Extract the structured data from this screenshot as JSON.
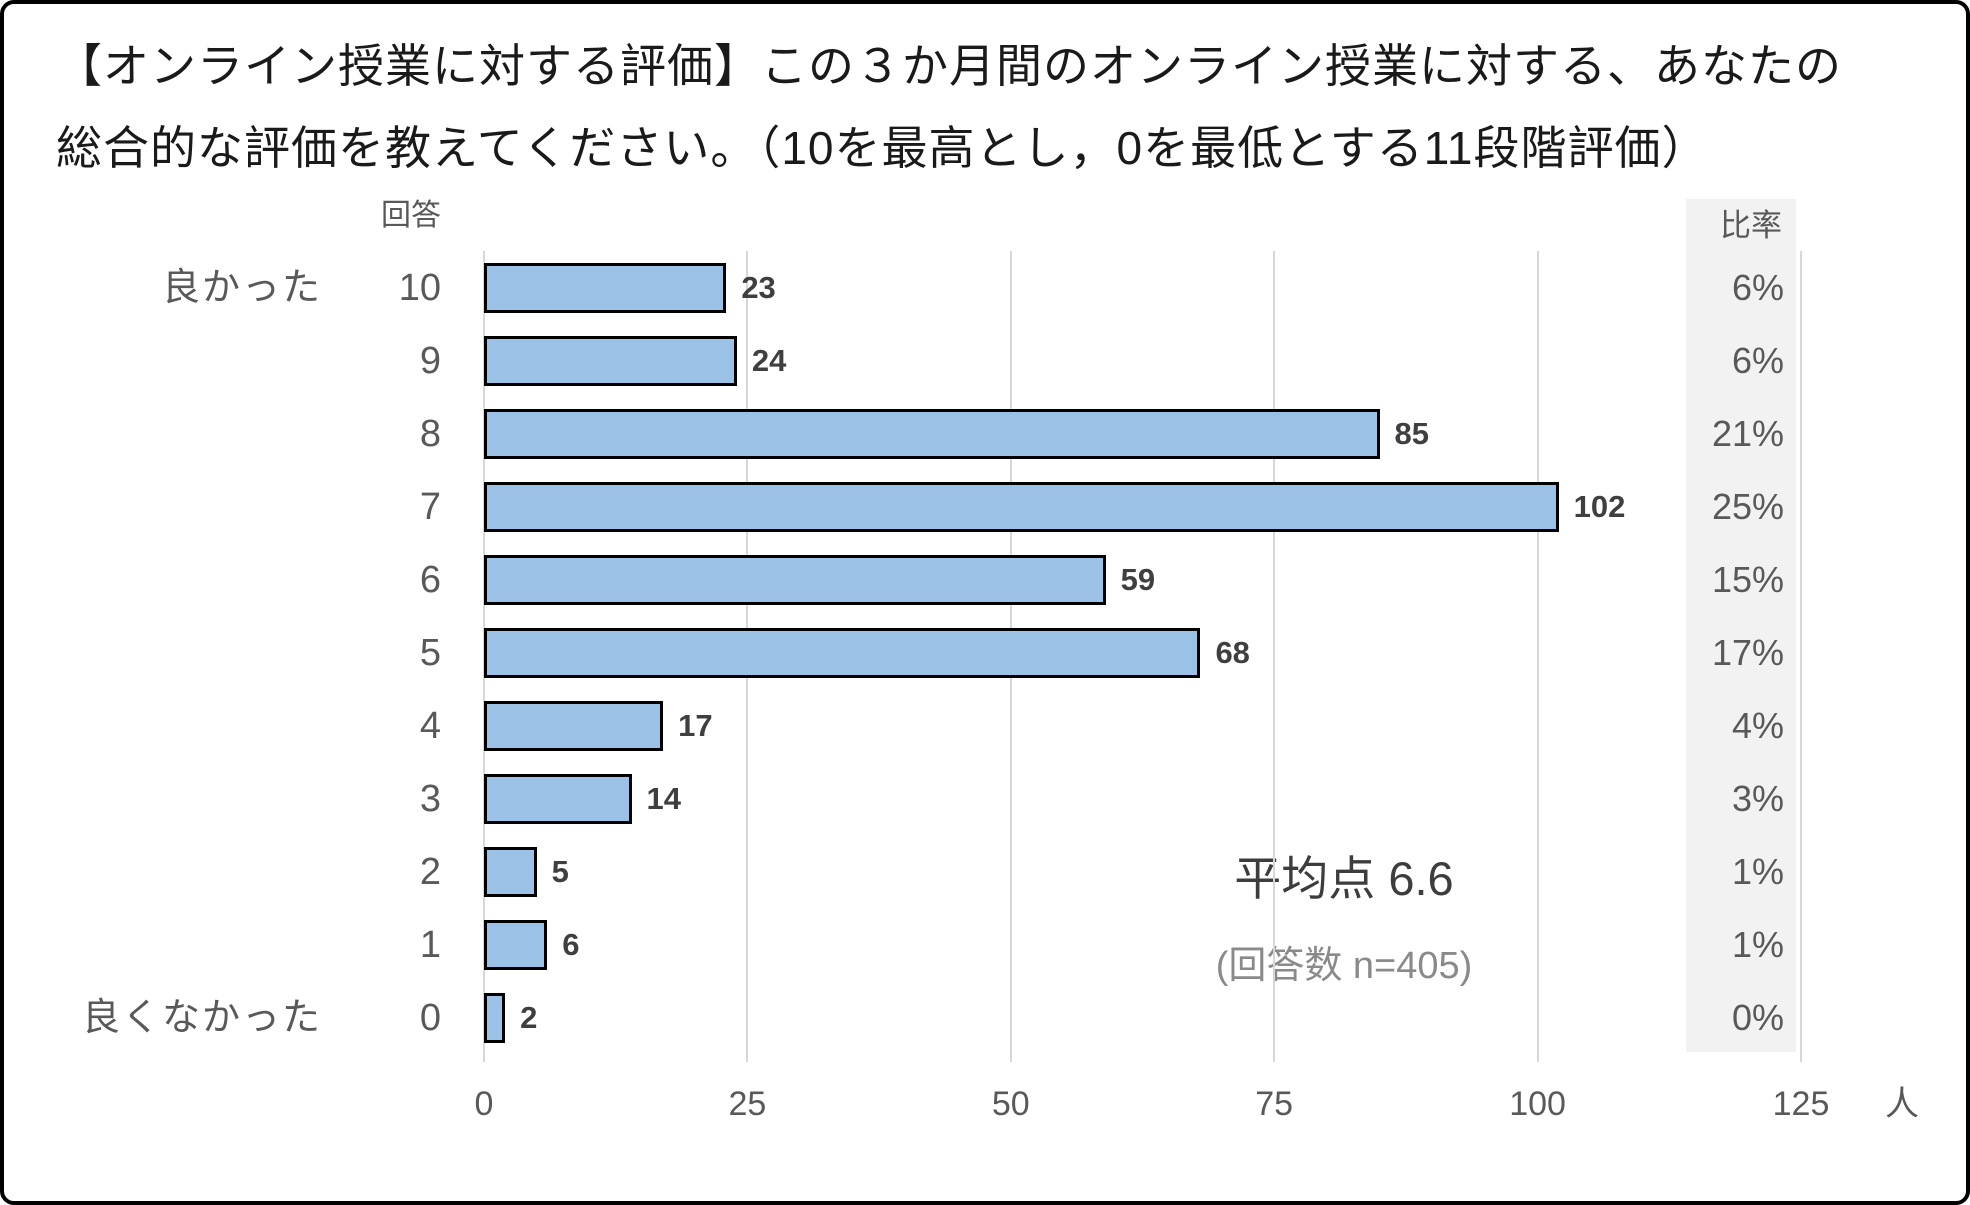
{
  "title": {
    "line1": "【オンライン授業に対する評価】この３か月間のオンライン授業に対する、あなたの",
    "line2": "総合的な評価を教えてください。（10を最高とし，0を最低とする11段階評価）"
  },
  "chart_data": {
    "type": "bar",
    "orientation": "horizontal",
    "col_header_left": "回答",
    "col_header_right": "比率",
    "categories": [
      "10",
      "9",
      "8",
      "7",
      "6",
      "5",
      "4",
      "3",
      "2",
      "1",
      "0"
    ],
    "values": [
      23,
      24,
      85,
      102,
      59,
      68,
      17,
      14,
      5,
      6,
      2
    ],
    "percent_labels": [
      "6%",
      "6%",
      "21%",
      "25%",
      "15%",
      "17%",
      "4%",
      "3%",
      "1%",
      "1%",
      "0%"
    ],
    "category_axis_top_label": "良かった",
    "category_axis_bottom_label": "良くなかった",
    "x_ticks": [
      0,
      25,
      50,
      75,
      100,
      125
    ],
    "xlim": [
      0,
      125
    ],
    "x_unit": "人",
    "annotation_mean": "平均点 6.6",
    "annotation_n": "(回答数 n=405)",
    "bar_fill": "#9BC2E6",
    "bar_border": "#000000",
    "grid_on": true,
    "legend": "none"
  }
}
